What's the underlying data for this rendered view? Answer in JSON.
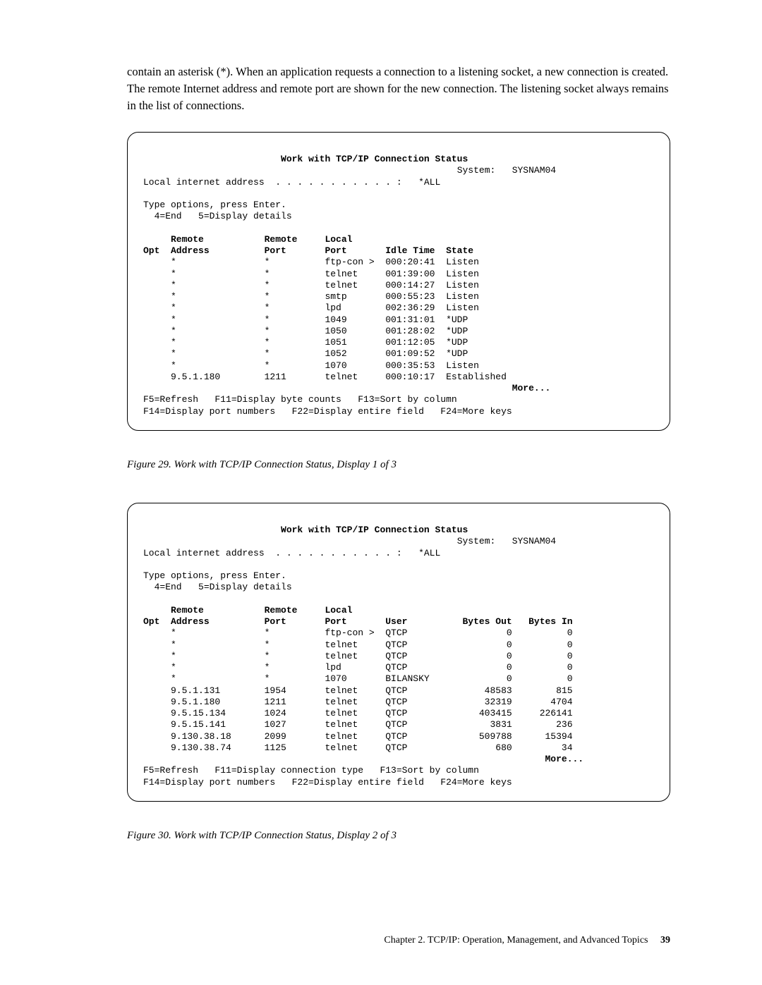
{
  "intro": "contain an asterisk (*). When an application requests a connection to a listening socket, a new connection is created. The remote Internet address and remote port are shown for the new connection. The listening socket always remains in the list of connections.",
  "term1": {
    "title": "Work with TCP/IP Connection Status",
    "system_label": "System:",
    "system_name": "SYSNAM04",
    "lia_label": "Local internet address  . . . . . . . . . . . :",
    "lia_value": "*ALL",
    "instr1": "Type options, press Enter.",
    "instr2": "  4=End   5=Display details",
    "hdr1a": "     Remote           Remote     Local",
    "hdr1b": "Opt  Address          Port       Port       Idle Time  State",
    "rows": [
      "     *                *          ftp-con >  000:20:41  Listen",
      "     *                *          telnet     001:39:00  Listen",
      "     *                *          telnet     000:14:27  Listen",
      "     *                *          smtp       000:55:23  Listen",
      "     *                *          lpd        002:36:29  Listen",
      "     *                *          1049       001:31:01  *UDP",
      "     *                *          1050       001:28:02  *UDP",
      "     *                *          1051       001:12:05  *UDP",
      "     *                *          1052       001:09:52  *UDP",
      "     *                *          1070       000:35:53  Listen",
      "     9.5.1.180        1211       telnet     000:10:17  Established"
    ],
    "more": "More...",
    "fkeys1": "F5=Refresh   F11=Display byte counts   F13=Sort by column",
    "fkeys2": "F14=Display port numbers   F22=Display entire field   F24=More keys"
  },
  "caption1": "Figure 29. Work with TCP/IP Connection Status, Display 1 of 3",
  "term2": {
    "title": "Work with TCP/IP Connection Status",
    "system_label": "System:",
    "system_name": "SYSNAM04",
    "lia_label": "Local internet address  . . . . . . . . . . . :",
    "lia_value": "*ALL",
    "instr1": "Type options, press Enter.",
    "instr2": "  4=End   5=Display details",
    "hdr1a": "     Remote           Remote     Local",
    "hdr1b": "Opt  Address          Port       Port       User          Bytes Out   Bytes In",
    "rows": [
      "     *                *          ftp-con >  QTCP                  0          0",
      "     *                *          telnet     QTCP                  0          0",
      "     *                *          telnet     QTCP                  0          0",
      "     *                *          lpd        QTCP                  0          0",
      "     *                *          1070       BILANSKY              0          0",
      "     9.5.1.131        1954       telnet     QTCP              48583        815",
      "     9.5.1.180        1211       telnet     QTCP              32319       4704",
      "     9.5.15.134       1024       telnet     QTCP             403415     226141",
      "     9.5.15.141       1027       telnet     QTCP               3831        236",
      "     9.130.38.18      2099       telnet     QTCP             509788      15394",
      "     9.130.38.74      1125       telnet     QTCP                680         34"
    ],
    "more": "More...",
    "fkeys1": "F5=Refresh   F11=Display connection type   F13=Sort by column",
    "fkeys2": "F14=Display port numbers   F22=Display entire field   F24=More keys"
  },
  "caption2": "Figure 30. Work with TCP/IP Connection Status, Display 2 of 3",
  "footer_text": "Chapter 2. TCP/IP: Operation, Management, and Advanced Topics",
  "footer_page": "39"
}
